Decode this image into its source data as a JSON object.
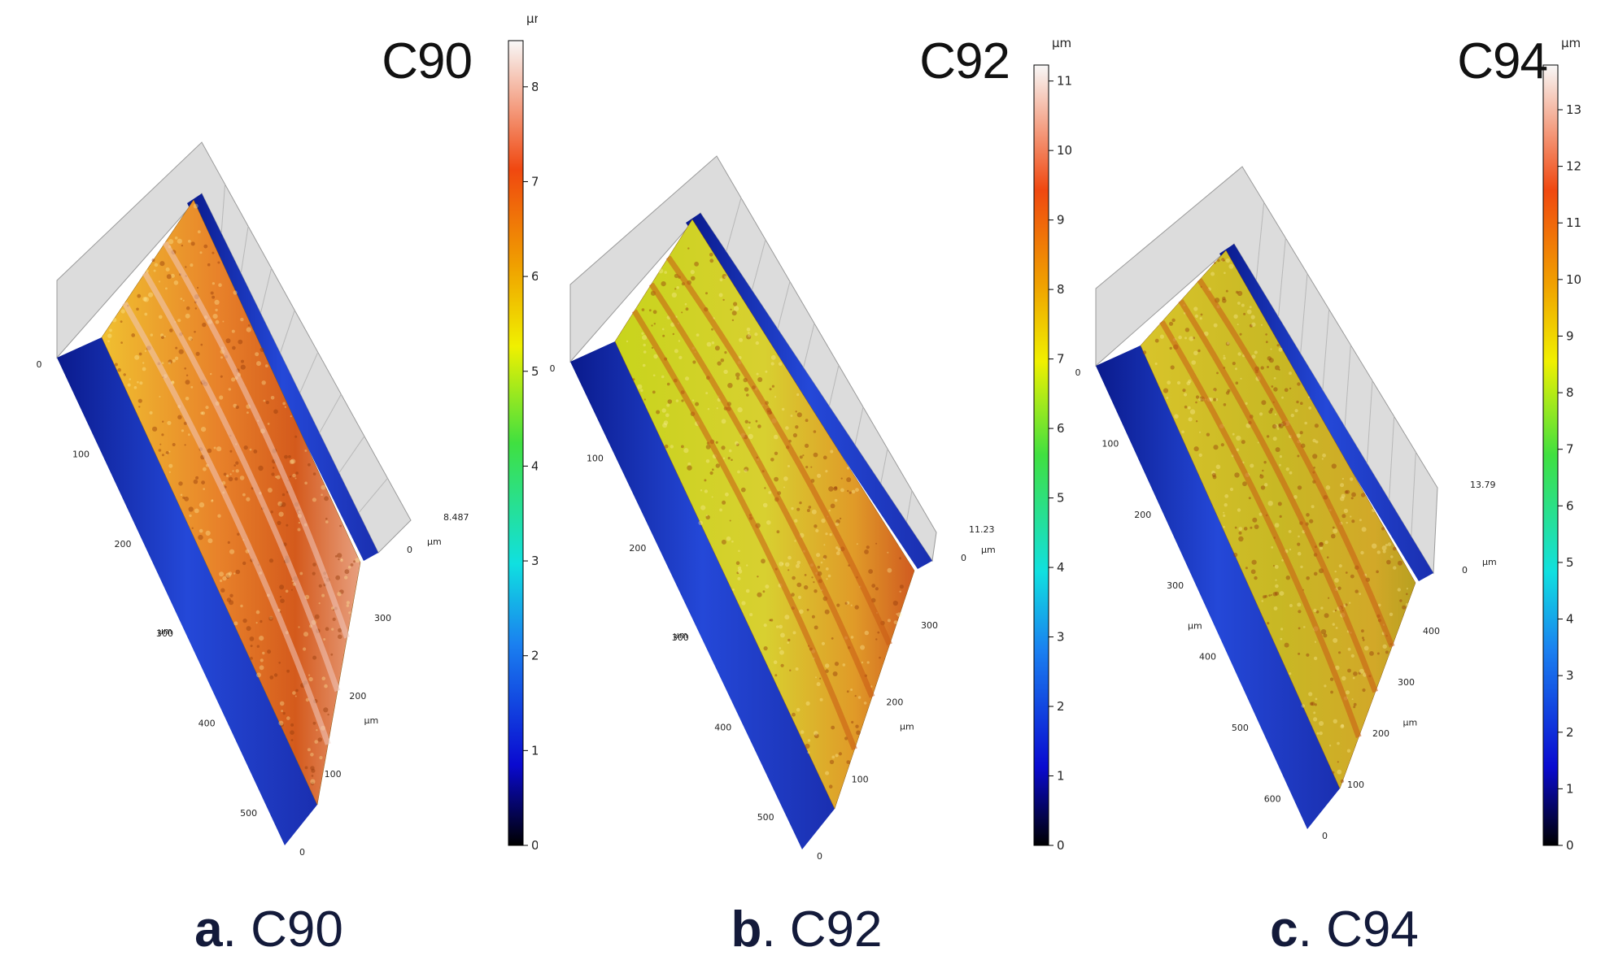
{
  "colors": {
    "low": "#0a1a8c",
    "mid": "#d4d419",
    "high": "#e85a14",
    "peak": "#f7e8e8",
    "caption_text": "#131a3a"
  },
  "panels": [
    {
      "id": "a",
      "title": "C90",
      "caption_letter": "a",
      "caption_name": "C90",
      "colorbar_unit": "µm",
      "colorbar_ticks": [
        "0",
        "1",
        "2",
        "3",
        "4",
        "5",
        "6",
        "7",
        "8"
      ],
      "colorbar_max": 8.487,
      "z_label": "8.487",
      "z_unit": "µm",
      "axis_left_ticks": [
        "0",
        "100",
        "200",
        "300",
        "400",
        "500"
      ],
      "axis_left_unit": "µm",
      "axis_right_ticks": [
        "0",
        "100",
        "200",
        "300"
      ],
      "axis_right_unit": "µm",
      "surface_palette": "orange"
    },
    {
      "id": "b",
      "title": "C92",
      "caption_letter": "b",
      "caption_name": "C92",
      "colorbar_unit": "µm",
      "colorbar_ticks": [
        "0",
        "1",
        "2",
        "3",
        "4",
        "5",
        "6",
        "7",
        "8",
        "9",
        "10",
        "11"
      ],
      "colorbar_max": 11.23,
      "z_label": "11.23",
      "z_unit": "µm",
      "axis_left_ticks": [
        "0",
        "100",
        "200",
        "300",
        "400",
        "500"
      ],
      "axis_left_unit": "µm",
      "axis_right_ticks": [
        "0",
        "100",
        "200",
        "300"
      ],
      "axis_right_unit": "µm",
      "surface_palette": "yellow"
    },
    {
      "id": "c",
      "title": "C94",
      "caption_letter": "c",
      "caption_name": "C94",
      "colorbar_unit": "µm",
      "colorbar_ticks": [
        "0",
        "1",
        "2",
        "3",
        "4",
        "5",
        "6",
        "7",
        "8",
        "9",
        "10",
        "11",
        "12",
        "13"
      ],
      "colorbar_max": 13.79,
      "z_label": "13.79",
      "z_unit": "µm",
      "axis_left_ticks": [
        "0",
        "100",
        "200",
        "300",
        "400",
        "500",
        "600"
      ],
      "axis_left_unit": "µm",
      "axis_right_ticks": [
        "0",
        "100",
        "200",
        "300",
        "400"
      ],
      "axis_right_unit": "µm",
      "surface_palette": "gold"
    }
  ]
}
